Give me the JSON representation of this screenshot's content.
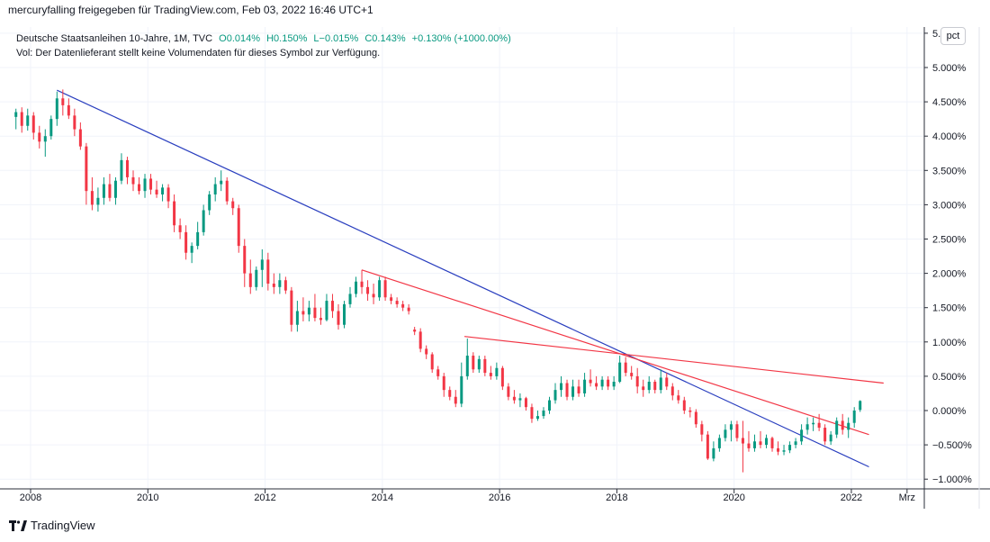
{
  "header": {
    "share_text": "mercuryfalling freigegeben für TradingView.com, Feb 03, 2022 16:46 UTC+1"
  },
  "legend": {
    "symbol": "Deutsche Staatsanleihen 10-Jahre, 1M, TVC",
    "open": "O0.014%",
    "high": "H0.150%",
    "low": "L−0.015%",
    "close": "C0.143%",
    "change": "+0.130% (+1000.00%)",
    "volume_note": "Vol: Der Datenlieferant stellt keine Volumendaten für dieses Symbol zur Verfügung."
  },
  "pct_button": "pct",
  "brand": {
    "name": "TradingView",
    "icon": "tradingview-logo-icon"
  },
  "colors": {
    "up": "#089981",
    "down": "#f23645",
    "trend_blue": "#2a3fbf",
    "trend_red": "#f23645",
    "grid": "#f0f3fa",
    "axis": "#2a2e39"
  },
  "chart_data": {
    "type": "candlestick",
    "title": "Deutsche Staatsanleihen 10-Jahre, 1M, TVC",
    "xlabel": "",
    "ylabel": "",
    "x_ticks": [
      "2008",
      "2010",
      "2012",
      "2014",
      "2016",
      "2018",
      "2020",
      "2022",
      "Mrz"
    ],
    "y_ticks": [
      "5.",
      "5.000%",
      "4.500%",
      "4.000%",
      "3.500%",
      "3.000%",
      "2.500%",
      "2.000%",
      "1.500%",
      "1.000%",
      "0.500%",
      "0.000%",
      "−0.500%",
      "−1.000%"
    ],
    "y_tick_values": [
      5.5,
      5.0,
      4.5,
      4.0,
      3.5,
      3.0,
      2.5,
      2.0,
      1.5,
      1.0,
      0.5,
      0.0,
      -0.5,
      -1.0
    ],
    "ylim": [
      -1.1,
      5.6
    ],
    "xlim": [
      2007.7,
      2023.0
    ],
    "candles": [
      {
        "t": 2007.75,
        "o": 4.28,
        "h": 4.4,
        "l": 4.1,
        "c": 4.35
      },
      {
        "t": 2007.85,
        "o": 4.35,
        "h": 4.42,
        "l": 4.05,
        "c": 4.15
      },
      {
        "t": 2007.95,
        "o": 4.15,
        "h": 4.4,
        "l": 4.08,
        "c": 4.3
      },
      {
        "t": 2008.05,
        "o": 4.3,
        "h": 4.35,
        "l": 3.95,
        "c": 4.05
      },
      {
        "t": 2008.15,
        "o": 4.05,
        "h": 4.15,
        "l": 3.82,
        "c": 3.92
      },
      {
        "t": 2008.25,
        "o": 3.92,
        "h": 4.1,
        "l": 3.7,
        "c": 4.0
      },
      {
        "t": 2008.35,
        "o": 4.0,
        "h": 4.3,
        "l": 3.95,
        "c": 4.25
      },
      {
        "t": 2008.45,
        "o": 4.25,
        "h": 4.65,
        "l": 4.15,
        "c": 4.55
      },
      {
        "t": 2008.55,
        "o": 4.55,
        "h": 4.68,
        "l": 4.3,
        "c": 4.45
      },
      {
        "t": 2008.65,
        "o": 4.45,
        "h": 4.55,
        "l": 4.25,
        "c": 4.3
      },
      {
        "t": 2008.75,
        "o": 4.3,
        "h": 4.4,
        "l": 4.0,
        "c": 4.1
      },
      {
        "t": 2008.85,
        "o": 4.1,
        "h": 4.2,
        "l": 3.8,
        "c": 3.85
      },
      {
        "t": 2008.95,
        "o": 3.85,
        "h": 3.9,
        "l": 3.0,
        "c": 3.2
      },
      {
        "t": 2009.05,
        "o": 3.2,
        "h": 3.4,
        "l": 2.92,
        "c": 3.0
      },
      {
        "t": 2009.15,
        "o": 3.0,
        "h": 3.25,
        "l": 2.9,
        "c": 3.1
      },
      {
        "t": 2009.25,
        "o": 3.1,
        "h": 3.4,
        "l": 3.0,
        "c": 3.3
      },
      {
        "t": 2009.35,
        "o": 3.3,
        "h": 3.45,
        "l": 3.05,
        "c": 3.1
      },
      {
        "t": 2009.45,
        "o": 3.1,
        "h": 3.4,
        "l": 3.0,
        "c": 3.35
      },
      {
        "t": 2009.55,
        "o": 3.35,
        "h": 3.75,
        "l": 3.3,
        "c": 3.65
      },
      {
        "t": 2009.65,
        "o": 3.65,
        "h": 3.7,
        "l": 3.3,
        "c": 3.4
      },
      {
        "t": 2009.75,
        "o": 3.4,
        "h": 3.5,
        "l": 3.2,
        "c": 3.3
      },
      {
        "t": 2009.85,
        "o": 3.3,
        "h": 3.4,
        "l": 3.15,
        "c": 3.2
      },
      {
        "t": 2009.95,
        "o": 3.2,
        "h": 3.45,
        "l": 3.1,
        "c": 3.38
      },
      {
        "t": 2010.05,
        "o": 3.38,
        "h": 3.45,
        "l": 3.15,
        "c": 3.22
      },
      {
        "t": 2010.15,
        "o": 3.22,
        "h": 3.35,
        "l": 3.1,
        "c": 3.15
      },
      {
        "t": 2010.25,
        "o": 3.15,
        "h": 3.3,
        "l": 3.05,
        "c": 3.25
      },
      {
        "t": 2010.35,
        "o": 3.25,
        "h": 3.3,
        "l": 2.95,
        "c": 3.05
      },
      {
        "t": 2010.45,
        "o": 3.05,
        "h": 3.15,
        "l": 2.6,
        "c": 2.7
      },
      {
        "t": 2010.55,
        "o": 2.7,
        "h": 2.8,
        "l": 2.5,
        "c": 2.6
      },
      {
        "t": 2010.65,
        "o": 2.6,
        "h": 2.7,
        "l": 2.2,
        "c": 2.3
      },
      {
        "t": 2010.75,
        "o": 2.3,
        "h": 2.45,
        "l": 2.15,
        "c": 2.4
      },
      {
        "t": 2010.85,
        "o": 2.4,
        "h": 2.75,
        "l": 2.35,
        "c": 2.6
      },
      {
        "t": 2010.95,
        "o": 2.6,
        "h": 3.0,
        "l": 2.55,
        "c": 2.92
      },
      {
        "t": 2011.05,
        "o": 2.92,
        "h": 3.2,
        "l": 2.85,
        "c": 3.15
      },
      {
        "t": 2011.15,
        "o": 3.15,
        "h": 3.4,
        "l": 3.05,
        "c": 3.3
      },
      {
        "t": 2011.25,
        "o": 3.3,
        "h": 3.5,
        "l": 3.2,
        "c": 3.35
      },
      {
        "t": 2011.35,
        "o": 3.35,
        "h": 3.4,
        "l": 3.0,
        "c": 3.05
      },
      {
        "t": 2011.45,
        "o": 3.05,
        "h": 3.1,
        "l": 2.85,
        "c": 2.95
      },
      {
        "t": 2011.55,
        "o": 2.95,
        "h": 3.0,
        "l": 2.3,
        "c": 2.4
      },
      {
        "t": 2011.65,
        "o": 2.4,
        "h": 2.5,
        "l": 1.8,
        "c": 2.0
      },
      {
        "t": 2011.75,
        "o": 2.0,
        "h": 2.2,
        "l": 1.7,
        "c": 1.8
      },
      {
        "t": 2011.85,
        "o": 1.8,
        "h": 2.1,
        "l": 1.75,
        "c": 2.05
      },
      {
        "t": 2011.95,
        "o": 2.05,
        "h": 2.35,
        "l": 1.8,
        "c": 2.2
      },
      {
        "t": 2012.05,
        "o": 2.2,
        "h": 2.3,
        "l": 1.75,
        "c": 1.85
      },
      {
        "t": 2012.15,
        "o": 1.85,
        "h": 2.0,
        "l": 1.7,
        "c": 1.8
      },
      {
        "t": 2012.25,
        "o": 1.8,
        "h": 2.0,
        "l": 1.7,
        "c": 1.9
      },
      {
        "t": 2012.35,
        "o": 1.9,
        "h": 1.95,
        "l": 1.7,
        "c": 1.75
      },
      {
        "t": 2012.45,
        "o": 1.75,
        "h": 1.8,
        "l": 1.15,
        "c": 1.25
      },
      {
        "t": 2012.55,
        "o": 1.25,
        "h": 1.6,
        "l": 1.15,
        "c": 1.45
      },
      {
        "t": 2012.65,
        "o": 1.45,
        "h": 1.65,
        "l": 1.3,
        "c": 1.4
      },
      {
        "t": 2012.75,
        "o": 1.4,
        "h": 1.6,
        "l": 1.3,
        "c": 1.5
      },
      {
        "t": 2012.85,
        "o": 1.5,
        "h": 1.7,
        "l": 1.3,
        "c": 1.35
      },
      {
        "t": 2012.95,
        "o": 1.35,
        "h": 1.5,
        "l": 1.25,
        "c": 1.32
      },
      {
        "t": 2013.05,
        "o": 1.32,
        "h": 1.7,
        "l": 1.3,
        "c": 1.6
      },
      {
        "t": 2013.15,
        "o": 1.6,
        "h": 1.7,
        "l": 1.35,
        "c": 1.45
      },
      {
        "t": 2013.25,
        "o": 1.45,
        "h": 1.55,
        "l": 1.18,
        "c": 1.25
      },
      {
        "t": 2013.35,
        "o": 1.25,
        "h": 1.6,
        "l": 1.2,
        "c": 1.55
      },
      {
        "t": 2013.45,
        "o": 1.55,
        "h": 1.8,
        "l": 1.5,
        "c": 1.7
      },
      {
        "t": 2013.55,
        "o": 1.7,
        "h": 1.95,
        "l": 1.65,
        "c": 1.88
      },
      {
        "t": 2013.65,
        "o": 1.88,
        "h": 2.05,
        "l": 1.7,
        "c": 1.8
      },
      {
        "t": 2013.75,
        "o": 1.8,
        "h": 1.9,
        "l": 1.6,
        "c": 1.7
      },
      {
        "t": 2013.85,
        "o": 1.7,
        "h": 1.85,
        "l": 1.55,
        "c": 1.65
      },
      {
        "t": 2013.95,
        "o": 1.65,
        "h": 1.95,
        "l": 1.6,
        "c": 1.9
      },
      {
        "t": 2014.05,
        "o": 1.9,
        "h": 1.95,
        "l": 1.6,
        "c": 1.65
      },
      {
        "t": 2014.15,
        "o": 1.65,
        "h": 1.7,
        "l": 1.55,
        "c": 1.6
      },
      {
        "t": 2014.25,
        "o": 1.6,
        "h": 1.65,
        "l": 1.5,
        "c": 1.55
      },
      {
        "t": 2014.35,
        "o": 1.55,
        "h": 1.6,
        "l": 1.45,
        "c": 1.5
      },
      {
        "t": 2014.45,
        "o": 1.5,
        "h": 1.55,
        "l": 1.4,
        "c": 1.45
      },
      {
        "t": 2014.55,
        "o": 1.18,
        "h": 1.22,
        "l": 1.1,
        "c": 1.15
      },
      {
        "t": 2014.65,
        "o": 1.15,
        "h": 1.2,
        "l": 0.85,
        "c": 0.9
      },
      {
        "t": 2014.75,
        "o": 0.9,
        "h": 0.95,
        "l": 0.75,
        "c": 0.82
      },
      {
        "t": 2014.85,
        "o": 0.82,
        "h": 0.85,
        "l": 0.55,
        "c": 0.6
      },
      {
        "t": 2014.95,
        "o": 0.6,
        "h": 0.65,
        "l": 0.45,
        "c": 0.5
      },
      {
        "t": 2015.05,
        "o": 0.5,
        "h": 0.55,
        "l": 0.2,
        "c": 0.3
      },
      {
        "t": 2015.15,
        "o": 0.3,
        "h": 0.35,
        "l": 0.15,
        "c": 0.2
      },
      {
        "t": 2015.25,
        "o": 0.2,
        "h": 0.3,
        "l": 0.05,
        "c": 0.1
      },
      {
        "t": 2015.35,
        "o": 0.1,
        "h": 0.7,
        "l": 0.05,
        "c": 0.5
      },
      {
        "t": 2015.45,
        "o": 0.5,
        "h": 1.05,
        "l": 0.45,
        "c": 0.8
      },
      {
        "t": 2015.55,
        "o": 0.8,
        "h": 0.85,
        "l": 0.55,
        "c": 0.6
      },
      {
        "t": 2015.65,
        "o": 0.6,
        "h": 0.8,
        "l": 0.55,
        "c": 0.75
      },
      {
        "t": 2015.75,
        "o": 0.75,
        "h": 0.8,
        "l": 0.5,
        "c": 0.55
      },
      {
        "t": 2015.85,
        "o": 0.55,
        "h": 0.65,
        "l": 0.45,
        "c": 0.5
      },
      {
        "t": 2015.95,
        "o": 0.5,
        "h": 0.7,
        "l": 0.45,
        "c": 0.62
      },
      {
        "t": 2016.05,
        "o": 0.62,
        "h": 0.65,
        "l": 0.3,
        "c": 0.35
      },
      {
        "t": 2016.15,
        "o": 0.35,
        "h": 0.4,
        "l": 0.15,
        "c": 0.2
      },
      {
        "t": 2016.25,
        "o": 0.2,
        "h": 0.3,
        "l": 0.1,
        "c": 0.15
      },
      {
        "t": 2016.35,
        "o": 0.15,
        "h": 0.25,
        "l": 0.05,
        "c": 0.18
      },
      {
        "t": 2016.45,
        "o": 0.18,
        "h": 0.2,
        "l": 0.0,
        "c": 0.05
      },
      {
        "t": 2016.55,
        "o": 0.05,
        "h": 0.1,
        "l": -0.18,
        "c": -0.12
      },
      {
        "t": 2016.65,
        "o": -0.12,
        "h": 0.0,
        "l": -0.15,
        "c": -0.08
      },
      {
        "t": 2016.75,
        "o": -0.08,
        "h": 0.05,
        "l": -0.12,
        "c": 0.0
      },
      {
        "t": 2016.85,
        "o": 0.0,
        "h": 0.2,
        "l": -0.05,
        "c": 0.15
      },
      {
        "t": 2016.95,
        "o": 0.15,
        "h": 0.4,
        "l": 0.1,
        "c": 0.3
      },
      {
        "t": 2017.05,
        "o": 0.3,
        "h": 0.5,
        "l": 0.2,
        "c": 0.4
      },
      {
        "t": 2017.15,
        "o": 0.4,
        "h": 0.45,
        "l": 0.15,
        "c": 0.2
      },
      {
        "t": 2017.25,
        "o": 0.2,
        "h": 0.45,
        "l": 0.15,
        "c": 0.35
      },
      {
        "t": 2017.35,
        "o": 0.35,
        "h": 0.45,
        "l": 0.2,
        "c": 0.25
      },
      {
        "t": 2017.45,
        "o": 0.25,
        "h": 0.55,
        "l": 0.2,
        "c": 0.45
      },
      {
        "t": 2017.55,
        "o": 0.45,
        "h": 0.6,
        "l": 0.35,
        "c": 0.4
      },
      {
        "t": 2017.65,
        "o": 0.4,
        "h": 0.5,
        "l": 0.3,
        "c": 0.35
      },
      {
        "t": 2017.75,
        "o": 0.35,
        "h": 0.5,
        "l": 0.3,
        "c": 0.45
      },
      {
        "t": 2017.85,
        "o": 0.45,
        "h": 0.5,
        "l": 0.3,
        "c": 0.35
      },
      {
        "t": 2017.95,
        "o": 0.35,
        "h": 0.5,
        "l": 0.3,
        "c": 0.42
      },
      {
        "t": 2018.05,
        "o": 0.42,
        "h": 0.8,
        "l": 0.4,
        "c": 0.7
      },
      {
        "t": 2018.15,
        "o": 0.7,
        "h": 0.78,
        "l": 0.5,
        "c": 0.55
      },
      {
        "t": 2018.25,
        "o": 0.55,
        "h": 0.65,
        "l": 0.45,
        "c": 0.5
      },
      {
        "t": 2018.35,
        "o": 0.5,
        "h": 0.62,
        "l": 0.25,
        "c": 0.35
      },
      {
        "t": 2018.45,
        "o": 0.35,
        "h": 0.45,
        "l": 0.2,
        "c": 0.3
      },
      {
        "t": 2018.55,
        "o": 0.3,
        "h": 0.5,
        "l": 0.25,
        "c": 0.42
      },
      {
        "t": 2018.65,
        "o": 0.42,
        "h": 0.45,
        "l": 0.25,
        "c": 0.3
      },
      {
        "t": 2018.75,
        "o": 0.3,
        "h": 0.6,
        "l": 0.25,
        "c": 0.48
      },
      {
        "t": 2018.85,
        "o": 0.48,
        "h": 0.55,
        "l": 0.3,
        "c": 0.35
      },
      {
        "t": 2018.95,
        "o": 0.35,
        "h": 0.4,
        "l": 0.15,
        "c": 0.22
      },
      {
        "t": 2019.05,
        "o": 0.22,
        "h": 0.3,
        "l": 0.1,
        "c": 0.15
      },
      {
        "t": 2019.15,
        "o": 0.15,
        "h": 0.2,
        "l": -0.05,
        "c": 0.0
      },
      {
        "t": 2019.25,
        "o": 0.0,
        "h": 0.05,
        "l": -0.1,
        "c": -0.02
      },
      {
        "t": 2019.35,
        "o": -0.02,
        "h": 0.02,
        "l": -0.25,
        "c": -0.2
      },
      {
        "t": 2019.45,
        "o": -0.2,
        "h": -0.15,
        "l": -0.45,
        "c": -0.35
      },
      {
        "t": 2019.55,
        "o": -0.35,
        "h": -0.3,
        "l": -0.72,
        "c": -0.7
      },
      {
        "t": 2019.65,
        "o": -0.7,
        "h": -0.45,
        "l": -0.74,
        "c": -0.55
      },
      {
        "t": 2019.75,
        "o": -0.55,
        "h": -0.35,
        "l": -0.6,
        "c": -0.4
      },
      {
        "t": 2019.85,
        "o": -0.4,
        "h": -0.2,
        "l": -0.45,
        "c": -0.28
      },
      {
        "t": 2019.95,
        "o": -0.28,
        "h": -0.15,
        "l": -0.45,
        "c": -0.2
      },
      {
        "t": 2020.05,
        "o": -0.2,
        "h": -0.15,
        "l": -0.45,
        "c": -0.4
      },
      {
        "t": 2020.15,
        "o": -0.4,
        "h": -0.15,
        "l": -0.9,
        "c": -0.48
      },
      {
        "t": 2020.25,
        "o": -0.48,
        "h": -0.3,
        "l": -0.6,
        "c": -0.55
      },
      {
        "t": 2020.35,
        "o": -0.55,
        "h": -0.35,
        "l": -0.6,
        "c": -0.45
      },
      {
        "t": 2020.45,
        "o": -0.45,
        "h": -0.3,
        "l": -0.55,
        "c": -0.5
      },
      {
        "t": 2020.55,
        "o": -0.5,
        "h": -0.35,
        "l": -0.55,
        "c": -0.4
      },
      {
        "t": 2020.65,
        "o": -0.4,
        "h": -0.38,
        "l": -0.6,
        "c": -0.55
      },
      {
        "t": 2020.75,
        "o": -0.55,
        "h": -0.45,
        "l": -0.65,
        "c": -0.6
      },
      {
        "t": 2020.85,
        "o": -0.6,
        "h": -0.5,
        "l": -0.65,
        "c": -0.58
      },
      {
        "t": 2020.95,
        "o": -0.58,
        "h": -0.45,
        "l": -0.62,
        "c": -0.5
      },
      {
        "t": 2021.05,
        "o": -0.5,
        "h": -0.4,
        "l": -0.55,
        "c": -0.45
      },
      {
        "t": 2021.15,
        "o": -0.45,
        "h": -0.2,
        "l": -0.5,
        "c": -0.28
      },
      {
        "t": 2021.25,
        "o": -0.28,
        "h": -0.1,
        "l": -0.35,
        "c": -0.2
      },
      {
        "t": 2021.35,
        "o": -0.2,
        "h": -0.1,
        "l": -0.3,
        "c": -0.18
      },
      {
        "t": 2021.45,
        "o": -0.18,
        "h": -0.05,
        "l": -0.3,
        "c": -0.25
      },
      {
        "t": 2021.55,
        "o": -0.25,
        "h": -0.2,
        "l": -0.5,
        "c": -0.45
      },
      {
        "t": 2021.65,
        "o": -0.45,
        "h": -0.3,
        "l": -0.5,
        "c": -0.35
      },
      {
        "t": 2021.75,
        "o": -0.35,
        "h": -0.1,
        "l": -0.4,
        "c": -0.15
      },
      {
        "t": 2021.85,
        "o": -0.15,
        "h": -0.05,
        "l": -0.35,
        "c": -0.28
      },
      {
        "t": 2021.95,
        "o": -0.28,
        "h": -0.1,
        "l": -0.4,
        "c": -0.18
      },
      {
        "t": 2022.05,
        "o": -0.18,
        "h": 0.05,
        "l": -0.25,
        "c": 0.0
      },
      {
        "t": 2022.15,
        "o": 0.01,
        "h": 0.15,
        "l": -0.02,
        "c": 0.14
      }
    ],
    "trendlines": [
      {
        "color": "#2a3fbf",
        "from": {
          "t": 2008.45,
          "y": 4.67
        },
        "to": {
          "t": 2022.3,
          "y": -0.82
        }
      },
      {
        "color": "#f23645",
        "from": {
          "t": 2013.65,
          "y": 2.05
        },
        "to": {
          "t": 2022.3,
          "y": -0.35
        }
      },
      {
        "color": "#f23645",
        "from": {
          "t": 2015.4,
          "y": 1.08
        },
        "to": {
          "t": 2022.55,
          "y": 0.4
        }
      }
    ]
  }
}
